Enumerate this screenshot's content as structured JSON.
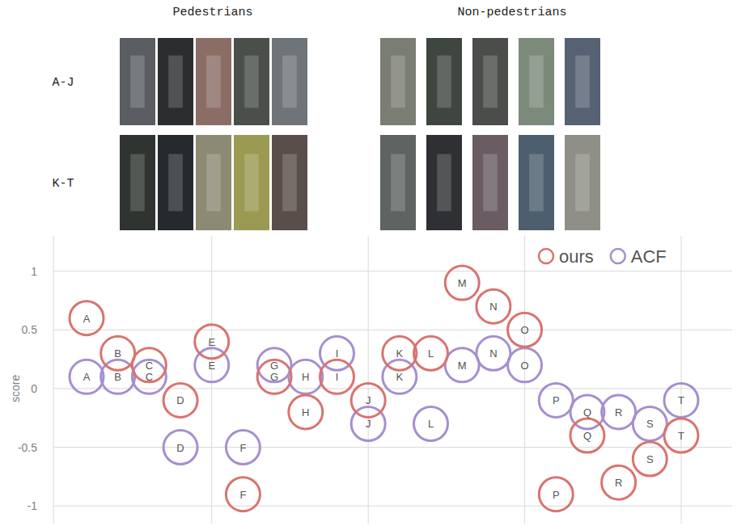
{
  "image_grid": {
    "column_titles": [
      "Pedestrians",
      "Non-pedestrians"
    ],
    "row_labels": [
      "A-J",
      "K-T"
    ]
  },
  "chart_data": {
    "type": "scatter",
    "y_label": "score",
    "categories": [
      "A",
      "B",
      "C",
      "D",
      "E",
      "F",
      "G",
      "H",
      "I",
      "J",
      "K",
      "L",
      "M",
      "N",
      "O",
      "P",
      "Q",
      "R",
      "S",
      "T"
    ],
    "series": [
      {
        "name": "ours",
        "color": "#d9736f",
        "marker": "circle",
        "values": [
          0.6,
          0.3,
          0.2,
          -0.1,
          0.4,
          -0.9,
          0.1,
          -0.2,
          0.1,
          -0.1,
          0.3,
          0.3,
          0.9,
          0.7,
          0.5,
          -0.9,
          -0.4,
          -0.8,
          -0.6,
          -0.4
        ]
      },
      {
        "name": "ACF",
        "color": "#a58fcf",
        "marker": "circle",
        "values": [
          0.1,
          0.1,
          0.1,
          -0.5,
          0.2,
          -0.5,
          0.2,
          0.1,
          0.3,
          -0.3,
          0.1,
          -0.3,
          0.2,
          0.3,
          0.2,
          -0.1,
          -0.2,
          -0.2,
          -0.3,
          -0.1
        ]
      }
    ],
    "ylim": [
      -1.15,
      1.3
    ],
    "yticks": [
      -1,
      -0.5,
      0,
      0.5,
      1
    ],
    "grid": true,
    "legend": "top-right",
    "tick_labels": "y"
  }
}
